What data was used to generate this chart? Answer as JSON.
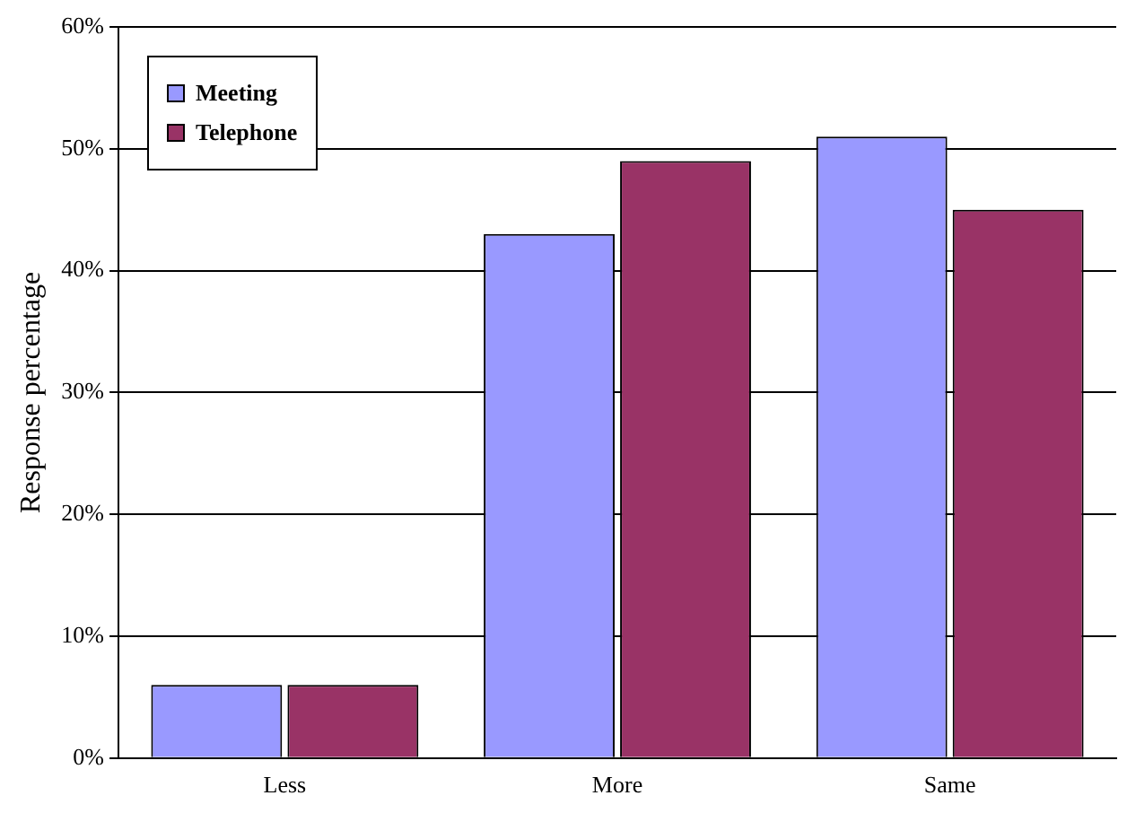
{
  "chart_data": {
    "type": "bar",
    "ylabel": "Response percentage",
    "categories": [
      "Less",
      "More",
      "Same"
    ],
    "series": [
      {
        "name": "Meeting",
        "color": "#9999ff",
        "values": [
          6,
          43,
          51
        ]
      },
      {
        "name": "Telephone",
        "color": "#993366",
        "values": [
          6,
          49,
          45
        ]
      }
    ],
    "ylim": [
      0,
      60
    ],
    "yticks": [
      {
        "value": 0,
        "label": "0%"
      },
      {
        "value": 10,
        "label": "10%"
      },
      {
        "value": 20,
        "label": "20%"
      },
      {
        "value": 30,
        "label": "30%"
      },
      {
        "value": 40,
        "label": "40%"
      },
      {
        "value": 50,
        "label": "50%"
      },
      {
        "value": 60,
        "label": "60%"
      }
    ],
    "grid": "y",
    "legend": "top left"
  }
}
